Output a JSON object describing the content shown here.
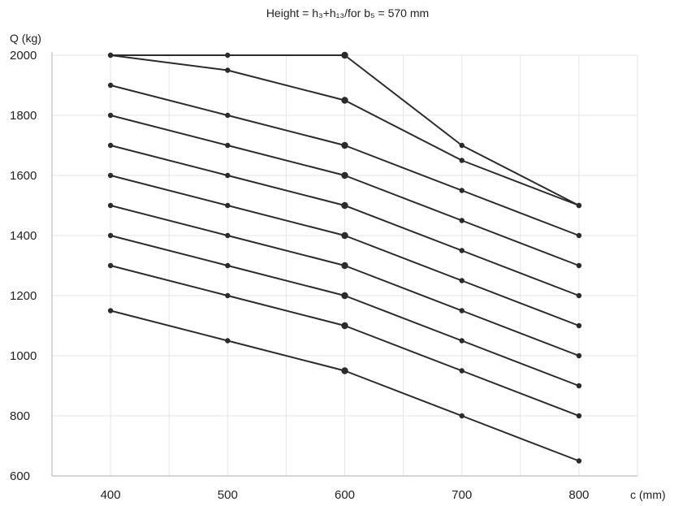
{
  "chart_data": {
    "type": "line",
    "title": "",
    "subtitle": "Height = h₃+h₁₃/for b₅ = 570 mm",
    "xlabel": "c (mm)",
    "ylabel": "Q (kg)",
    "xlim": [
      350,
      850
    ],
    "ylim": [
      600,
      2000
    ],
    "x": [
      400,
      500,
      600,
      700,
      800
    ],
    "x_ticks": [
      "400",
      "500",
      "600",
      "700",
      "800"
    ],
    "y_ticks": [
      "600",
      "800",
      "1000",
      "1200",
      "1400",
      "1600",
      "1800",
      "2000"
    ],
    "grid": true,
    "legend": "none",
    "series": [
      {
        "values": [
          2000,
          2000,
          2000,
          1700,
          1500
        ]
      },
      {
        "values": [
          2000,
          1950,
          1850,
          1650,
          1500
        ]
      },
      {
        "values": [
          1900,
          1800,
          1700,
          1550,
          1400
        ]
      },
      {
        "values": [
          1800,
          1700,
          1600,
          1450,
          1300
        ]
      },
      {
        "values": [
          1700,
          1600,
          1500,
          1350,
          1200
        ]
      },
      {
        "values": [
          1600,
          1500,
          1400,
          1250,
          1100
        ]
      },
      {
        "values": [
          1500,
          1400,
          1300,
          1150,
          1000
        ]
      },
      {
        "values": [
          1400,
          1300,
          1200,
          1050,
          900
        ]
      },
      {
        "values": [
          1300,
          1200,
          1100,
          950,
          800
        ]
      },
      {
        "values": [
          1150,
          1050,
          950,
          800,
          650
        ]
      }
    ],
    "colors": {
      "line": "#2b2b2b",
      "grid": "#e6e6e6",
      "axis": "#bdbdbd"
    }
  }
}
